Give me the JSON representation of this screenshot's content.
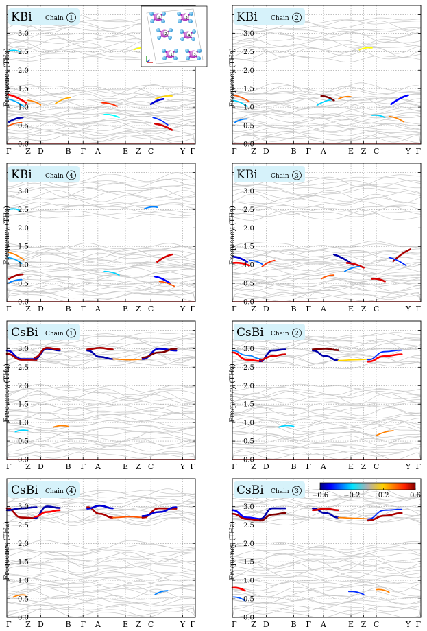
{
  "figure": {
    "ylabel": "Frequency (THz)",
    "xticks": [
      "Γ",
      "Z",
      "D",
      "B",
      "Γ",
      "A",
      "E",
      "Z",
      "C",
      "Y",
      "Γ"
    ],
    "xtick_positions": [
      0,
      1,
      1.6,
      2.9,
      3.6,
      4.3,
      5.6,
      6.2,
      6.8,
      8.3,
      8.9
    ],
    "yticks": [
      "0.0",
      "0.5",
      "1.0",
      "1.5",
      "2.0",
      "2.5",
      "3.0",
      "3.5"
    ],
    "colorbar": {
      "ticks": [
        "−0.6",
        "−0.2",
        "0.2",
        "0.6"
      ],
      "tick_values": [
        -0.6,
        -0.2,
        0.2,
        0.6
      ],
      "range": [
        -0.6,
        0.6
      ],
      "colormap": "jet"
    },
    "inset": {
      "chain_labels": [
        "1",
        "3",
        "2",
        "4",
        "1",
        "3"
      ]
    }
  },
  "chart_data": [
    {
      "type": "line",
      "material": "KBi",
      "chain_word": "Chain",
      "chain": "1",
      "ylim": [
        0,
        3.75
      ],
      "grid": true,
      "has_inset": true,
      "gap": [
        1.55,
        2.3
      ],
      "highlights": [
        {
          "x": [
            0.05,
            0.9
          ],
          "y": [
            1.34,
            1.12
          ],
          "c": 0.45
        },
        {
          "x": [
            0.05,
            0.8
          ],
          "y": [
            1.22,
            1.02
          ],
          "c": -0.25
        },
        {
          "x": [
            0.1,
            0.75
          ],
          "y": [
            0.6,
            0.72
          ],
          "c": -0.55
        },
        {
          "x": [
            0.05,
            0.7
          ],
          "y": [
            0.48,
            0.58
          ],
          "c": 0.35
        },
        {
          "x": [
            1.0,
            1.6
          ],
          "y": [
            1.18,
            1.06
          ],
          "c": 0.3
        },
        {
          "x": [
            2.3,
            3.0
          ],
          "y": [
            1.1,
            1.26
          ],
          "c": 0.25
        },
        {
          "x": [
            4.5,
            5.2
          ],
          "y": [
            1.12,
            1.02
          ],
          "c": 0.4
        },
        {
          "x": [
            4.6,
            5.3
          ],
          "y": [
            0.8,
            0.72
          ],
          "c": -0.15
        },
        {
          "x": [
            6.8,
            7.4
          ],
          "y": [
            1.08,
            1.22
          ],
          "c": -0.5
        },
        {
          "x": [
            6.9,
            7.6
          ],
          "y": [
            0.72,
            0.52
          ],
          "c": -0.4
        },
        {
          "x": [
            7.0,
            7.8
          ],
          "y": [
            0.55,
            0.38
          ],
          "c": 0.5
        },
        {
          "x": [
            7.0,
            7.8
          ],
          "y": [
            1.22,
            1.3
          ],
          "c": 0.2
        },
        {
          "x": [
            0.1,
            0.6
          ],
          "y": [
            2.52,
            2.5
          ],
          "c": -0.2
        },
        {
          "x": [
            6.0,
            6.6
          ],
          "y": [
            2.55,
            2.6
          ],
          "c": 0.15
        }
      ]
    },
    {
      "type": "line",
      "material": "KBi",
      "chain_word": "Chain",
      "chain": "2",
      "ylim": [
        0,
        3.75
      ],
      "grid": true,
      "has_inset": false,
      "gap": [
        1.55,
        2.3
      ],
      "highlights": [
        {
          "x": [
            0.05,
            0.8
          ],
          "y": [
            1.32,
            1.15
          ],
          "c": 0.35
        },
        {
          "x": [
            0.05,
            0.7
          ],
          "y": [
            1.18,
            1.02
          ],
          "c": -0.2
        },
        {
          "x": [
            0.1,
            0.7
          ],
          "y": [
            0.58,
            0.68
          ],
          "c": -0.3
        },
        {
          "x": [
            4.0,
            4.7
          ],
          "y": [
            1.05,
            1.2
          ],
          "c": -0.2
        },
        {
          "x": [
            4.2,
            4.8
          ],
          "y": [
            1.3,
            1.18
          ],
          "c": 0.6
        },
        {
          "x": [
            5.0,
            5.6
          ],
          "y": [
            1.22,
            1.28
          ],
          "c": 0.3
        },
        {
          "x": [
            7.5,
            8.3
          ],
          "y": [
            1.08,
            1.32
          ],
          "c": -0.45
        },
        {
          "x": [
            7.4,
            8.1
          ],
          "y": [
            0.75,
            0.6
          ],
          "c": 0.3
        },
        {
          "x": [
            6.6,
            7.2
          ],
          "y": [
            0.78,
            0.72
          ],
          "c": -0.2
        },
        {
          "x": [
            6.0,
            6.6
          ],
          "y": [
            2.55,
            2.6
          ],
          "c": 0.15
        }
      ]
    },
    {
      "type": "line",
      "material": "KBi",
      "chain_word": "Chain",
      "chain": "4",
      "ylim": [
        0,
        3.75
      ],
      "grid": true,
      "has_inset": false,
      "gap": [
        1.55,
        2.3
      ],
      "highlights": [
        {
          "x": [
            0.05,
            0.8
          ],
          "y": [
            1.34,
            1.14
          ],
          "c": 0.3
        },
        {
          "x": [
            0.05,
            0.7
          ],
          "y": [
            1.2,
            1.04
          ],
          "c": -0.25
        },
        {
          "x": [
            0.1,
            0.75
          ],
          "y": [
            0.62,
            0.74
          ],
          "c": 0.55
        },
        {
          "x": [
            0.05,
            0.7
          ],
          "y": [
            0.5,
            0.6
          ],
          "c": -0.3
        },
        {
          "x": [
            4.6,
            5.3
          ],
          "y": [
            0.82,
            0.72
          ],
          "c": -0.2
        },
        {
          "x": [
            7.1,
            7.8
          ],
          "y": [
            1.08,
            1.28
          ],
          "c": 0.5
        },
        {
          "x": [
            7.0,
            7.7
          ],
          "y": [
            0.68,
            0.5
          ],
          "c": -0.45
        },
        {
          "x": [
            7.2,
            7.9
          ],
          "y": [
            0.55,
            0.42
          ],
          "c": 0.35
        },
        {
          "x": [
            0.1,
            0.6
          ],
          "y": [
            2.5,
            2.48
          ],
          "c": -0.2
        },
        {
          "x": [
            6.5,
            7.1
          ],
          "y": [
            2.52,
            2.56
          ],
          "c": -0.3
        }
      ]
    },
    {
      "type": "line",
      "material": "KBi",
      "chain_word": "Chain",
      "chain": "3",
      "ylim": [
        0,
        3.75
      ],
      "grid": true,
      "has_inset": false,
      "gap": [
        1.55,
        2.3
      ],
      "highlights": [
        {
          "x": [
            0.05,
            0.7
          ],
          "y": [
            1.22,
            1.08
          ],
          "c": -0.5
        },
        {
          "x": [
            0.05,
            0.8
          ],
          "y": [
            1.05,
            0.98
          ],
          "c": 0.45
        },
        {
          "x": [
            0.8,
            1.4
          ],
          "y": [
            1.12,
            1.02
          ],
          "c": -0.35
        },
        {
          "x": [
            1.4,
            2.0
          ],
          "y": [
            0.95,
            1.12
          ],
          "c": 0.4
        },
        {
          "x": [
            4.8,
            5.7
          ],
          "y": [
            1.28,
            1.0
          ],
          "c": -0.55
        },
        {
          "x": [
            5.4,
            6.2
          ],
          "y": [
            1.05,
            0.92
          ],
          "c": 0.5
        },
        {
          "x": [
            5.3,
            6.0
          ],
          "y": [
            0.82,
            0.95
          ],
          "c": -0.3
        },
        {
          "x": [
            7.6,
            8.4
          ],
          "y": [
            1.1,
            1.42
          ],
          "c": 0.55
        },
        {
          "x": [
            7.4,
            8.2
          ],
          "y": [
            1.2,
            0.98
          ],
          "c": -0.4
        },
        {
          "x": [
            4.2,
            4.8
          ],
          "y": [
            0.62,
            0.72
          ],
          "c": 0.35
        },
        {
          "x": [
            6.6,
            7.2
          ],
          "y": [
            0.62,
            0.55
          ],
          "c": 0.5
        }
      ]
    },
    {
      "type": "line",
      "material": "CsBi",
      "chain_word": "Chain",
      "chain": "1",
      "ylim": [
        0,
        3.75
      ],
      "grid": true,
      "has_inset": false,
      "gap": [
        2.0,
        2.55
      ],
      "highlights": [
        {
          "x": [
            0.0,
            0.7,
            1.4
          ],
          "y": [
            2.95,
            2.72,
            2.72
          ],
          "c": -0.5
        },
        {
          "x": [
            0.0,
            0.7,
            1.4
          ],
          "y": [
            2.86,
            2.7,
            2.7
          ],
          "c": 0.55
        },
        {
          "x": [
            1.3,
            1.9,
            2.5
          ],
          "y": [
            2.72,
            3.0,
            2.95
          ],
          "c": -0.55
        },
        {
          "x": [
            1.3,
            1.9,
            2.5
          ],
          "y": [
            2.76,
            3.02,
            2.98
          ],
          "c": 0.55
        },
        {
          "x": [
            3.8,
            4.4,
            5.0
          ],
          "y": [
            2.95,
            2.78,
            2.72
          ],
          "c": -0.55
        },
        {
          "x": [
            3.8,
            4.4,
            5.0
          ],
          "y": [
            2.98,
            3.02,
            2.98
          ],
          "c": 0.55
        },
        {
          "x": [
            5.0,
            5.8,
            6.6
          ],
          "y": [
            2.72,
            2.7,
            2.72
          ],
          "c": 0.3
        },
        {
          "x": [
            6.4,
            7.2,
            8.0
          ],
          "y": [
            2.72,
            3.0,
            2.95
          ],
          "c": -0.5
        },
        {
          "x": [
            6.4,
            7.2,
            8.0
          ],
          "y": [
            2.76,
            2.9,
            3.0
          ],
          "c": 0.6
        },
        {
          "x": [
            2.2,
            2.9
          ],
          "y": [
            0.88,
            0.9
          ],
          "c": 0.3
        },
        {
          "x": [
            0.4,
            1.0
          ],
          "y": [
            0.75,
            0.78
          ],
          "c": -0.2
        }
      ]
    },
    {
      "type": "line",
      "material": "CsBi",
      "chain_word": "Chain",
      "chain": "2",
      "ylim": [
        0,
        3.75
      ],
      "grid": true,
      "has_inset": false,
      "gap": [
        2.0,
        2.55
      ],
      "highlights": [
        {
          "x": [
            0.0,
            0.7,
            1.4
          ],
          "y": [
            2.9,
            2.7,
            2.66
          ],
          "c": 0.45
        },
        {
          "x": [
            0.0,
            0.7,
            1.4
          ],
          "y": [
            2.95,
            2.82,
            2.72
          ],
          "c": -0.3
        },
        {
          "x": [
            1.3,
            1.9,
            2.5
          ],
          "y": [
            2.66,
            2.95,
            2.98
          ],
          "c": -0.55
        },
        {
          "x": [
            1.3,
            1.9,
            2.5
          ],
          "y": [
            2.7,
            2.8,
            2.85
          ],
          "c": 0.5
        },
        {
          "x": [
            3.8,
            4.4,
            5.0
          ],
          "y": [
            2.95,
            2.8,
            2.68
          ],
          "c": -0.55
        },
        {
          "x": [
            3.8,
            4.4,
            5.0
          ],
          "y": [
            2.98,
            3.0,
            2.96
          ],
          "c": 0.6
        },
        {
          "x": [
            5.0,
            5.8,
            6.6
          ],
          "y": [
            2.68,
            2.7,
            2.72
          ],
          "c": 0.2
        },
        {
          "x": [
            6.4,
            7.2,
            8.0
          ],
          "y": [
            2.7,
            2.92,
            2.96
          ],
          "c": -0.4
        },
        {
          "x": [
            6.4,
            7.2,
            8.0
          ],
          "y": [
            2.65,
            2.8,
            2.85
          ],
          "c": 0.45
        },
        {
          "x": [
            6.8,
            7.6
          ],
          "y": [
            0.65,
            0.78
          ],
          "c": 0.3
        },
        {
          "x": [
            2.2,
            2.9
          ],
          "y": [
            0.88,
            0.9
          ],
          "c": -0.2
        }
      ]
    },
    {
      "type": "line",
      "material": "CsBi",
      "chain_word": "Chain",
      "chain": "4",
      "ylim": [
        0,
        3.75
      ],
      "grid": true,
      "has_inset": false,
      "gap": [
        2.0,
        2.55
      ],
      "highlights": [
        {
          "x": [
            0.0,
            0.7,
            1.4
          ],
          "y": [
            2.95,
            2.7,
            2.68
          ],
          "c": 0.55
        },
        {
          "x": [
            0.0,
            0.7,
            1.4
          ],
          "y": [
            2.9,
            2.95,
            2.98
          ],
          "c": -0.55
        },
        {
          "x": [
            1.3,
            1.9,
            2.5
          ],
          "y": [
            2.68,
            3.0,
            2.96
          ],
          "c": -0.55
        },
        {
          "x": [
            1.3,
            1.9,
            2.5
          ],
          "y": [
            2.72,
            2.85,
            2.9
          ],
          "c": 0.45
        },
        {
          "x": [
            3.8,
            4.4,
            5.0
          ],
          "y": [
            2.98,
            2.8,
            2.7
          ],
          "c": 0.55
        },
        {
          "x": [
            3.8,
            4.4,
            5.0
          ],
          "y": [
            2.94,
            3.02,
            2.95
          ],
          "c": -0.5
        },
        {
          "x": [
            5.0,
            5.8,
            6.6
          ],
          "y": [
            2.7,
            2.72,
            2.7
          ],
          "c": 0.35
        },
        {
          "x": [
            6.4,
            7.2,
            8.0
          ],
          "y": [
            2.7,
            2.95,
            2.94
          ],
          "c": 0.55
        },
        {
          "x": [
            6.4,
            7.2,
            8.0
          ],
          "y": [
            2.74,
            2.85,
            2.98
          ],
          "c": -0.5
        },
        {
          "x": [
            7.0,
            7.6
          ],
          "y": [
            0.62,
            0.72
          ],
          "c": -0.3
        },
        {
          "x": [
            0.3,
            0.9
          ],
          "y": [
            0.55,
            0.6
          ],
          "c": 0.3
        }
      ]
    },
    {
      "type": "line",
      "material": "CsBi",
      "chain_word": "Chain",
      "chain": "3",
      "ylim": [
        0,
        3.75
      ],
      "grid": true,
      "has_inset": false,
      "gap": [
        2.0,
        2.55
      ],
      "colorbar": true,
      "highlights": [
        {
          "x": [
            0.0,
            0.7,
            1.4
          ],
          "y": [
            2.9,
            2.7,
            2.66
          ],
          "c": -0.45
        },
        {
          "x": [
            0.0,
            0.7,
            1.4
          ],
          "y": [
            2.8,
            2.66,
            2.62
          ],
          "c": 0.55
        },
        {
          "x": [
            1.3,
            1.9,
            2.5
          ],
          "y": [
            2.66,
            2.95,
            2.95
          ],
          "c": -0.55
        },
        {
          "x": [
            1.3,
            1.9,
            2.5
          ],
          "y": [
            2.62,
            2.78,
            2.82
          ],
          "c": 0.6
        },
        {
          "x": [
            3.8,
            4.4,
            5.0
          ],
          "y": [
            2.95,
            2.82,
            2.7
          ],
          "c": -0.55
        },
        {
          "x": [
            3.8,
            4.4,
            5.0
          ],
          "y": [
            2.9,
            2.94,
            2.9
          ],
          "c": 0.5
        },
        {
          "x": [
            5.0,
            5.8,
            6.6
          ],
          "y": [
            2.7,
            2.68,
            2.66
          ],
          "c": 0.3
        },
        {
          "x": [
            6.4,
            7.2,
            8.0
          ],
          "y": [
            2.66,
            2.9,
            2.92
          ],
          "c": -0.4
        },
        {
          "x": [
            6.4,
            7.2,
            8.0
          ],
          "y": [
            2.62,
            2.75,
            2.82
          ],
          "c": 0.55
        },
        {
          "x": [
            0.0,
            0.6
          ],
          "y": [
            0.8,
            0.72
          ],
          "c": 0.45
        },
        {
          "x": [
            0.05,
            0.6
          ],
          "y": [
            0.55,
            0.45
          ],
          "c": -0.35
        },
        {
          "x": [
            5.5,
            6.2
          ],
          "y": [
            0.7,
            0.62
          ],
          "c": -0.4
        },
        {
          "x": [
            6.8,
            7.4
          ],
          "y": [
            0.75,
            0.68
          ],
          "c": 0.3
        }
      ]
    }
  ]
}
